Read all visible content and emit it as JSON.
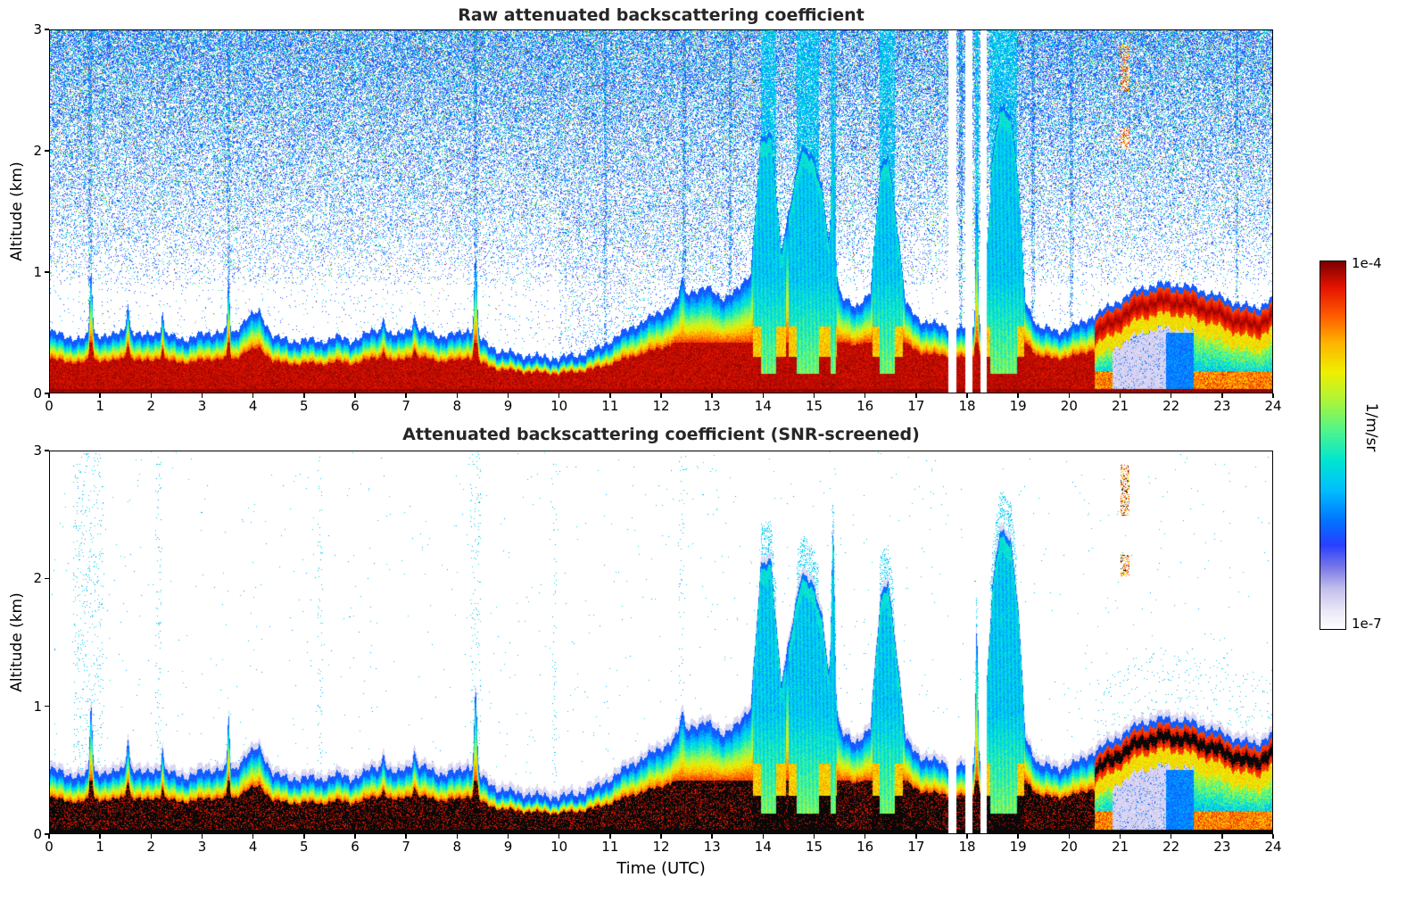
{
  "figure": {
    "background": "#ffffff",
    "title_color": "#262626",
    "axis_color": "#000000"
  },
  "chart_data": {
    "type": "heatmap",
    "x": {
      "label": "Time (UTC)",
      "min": 0,
      "max": 24,
      "ticks": [
        0,
        1,
        2,
        3,
        4,
        5,
        6,
        7,
        8,
        9,
        10,
        11,
        12,
        13,
        14,
        15,
        16,
        17,
        18,
        19,
        20,
        21,
        22,
        23,
        24
      ]
    },
    "y": {
      "label": "Altitude (km)",
      "min": 0,
      "max": 3,
      "ticks": [
        0,
        1,
        2,
        3
      ]
    },
    "colorbar": {
      "max_label": "1e-4",
      "min_label": "1e-7",
      "unit": "1/m/sr",
      "scale": "logarithmic",
      "stops": [
        [
          0,
          "#ffffff"
        ],
        [
          0.05,
          "#ece9f7"
        ],
        [
          0.11,
          "#c4c0ee"
        ],
        [
          0.17,
          "#7878e8"
        ],
        [
          0.23,
          "#2840ff"
        ],
        [
          0.3,
          "#0078ff"
        ],
        [
          0.38,
          "#00c0ff"
        ],
        [
          0.46,
          "#00e6d2"
        ],
        [
          0.54,
          "#50f58c"
        ],
        [
          0.62,
          "#aaf53c"
        ],
        [
          0.7,
          "#f0f000"
        ],
        [
          0.78,
          "#ffb400"
        ],
        [
          0.855,
          "#ff5a00"
        ],
        [
          0.93,
          "#e61400"
        ],
        [
          1,
          "#7d0000"
        ]
      ]
    },
    "panels": [
      {
        "id": "raw",
        "title": "Raw attenuated backscattering coefficient",
        "noise_screened": false,
        "features": [
          "dense blue/cyan background noise increasing with altitude above ~1 km",
          "strong red aerosol layer below ~0.5 km for most of the day",
          "cloud/precipitation plumes reaching 1.9-2.4 km between 13.8 and 19.1 UTC",
          "white data gaps near 17.7, 18.0 and 18.3 UTC",
          "elevated layer at 0.6-0.9 km after 20.5 UTC with pale attenuated zone beneath 20.9-22.4 UTC"
        ]
      },
      {
        "id": "screened",
        "title": "Attenuated backscattering coefficient (SNR-screened)",
        "noise_screened": true,
        "features": [
          "noise screened to white above the detected signal",
          "saturated returns rendered black inside the aerosol layer and along the surface line",
          "same plumes, data gaps and elevated layer as the raw panel"
        ]
      }
    ],
    "boundary_layer_top_km": [
      [
        0,
        0.46
      ],
      [
        0.3,
        0.42
      ],
      [
        0.6,
        0.4
      ],
      [
        0.9,
        0.44
      ],
      [
        1.2,
        0.42
      ],
      [
        1.5,
        0.48
      ],
      [
        1.8,
        0.42
      ],
      [
        2.1,
        0.46
      ],
      [
        2.4,
        0.42
      ],
      [
        2.7,
        0.4
      ],
      [
        3.0,
        0.44
      ],
      [
        3.3,
        0.46
      ],
      [
        3.6,
        0.44
      ],
      [
        3.85,
        0.58
      ],
      [
        4.1,
        0.62
      ],
      [
        4.35,
        0.44
      ],
      [
        4.7,
        0.37
      ],
      [
        5.0,
        0.4
      ],
      [
        5.3,
        0.37
      ],
      [
        5.6,
        0.42
      ],
      [
        5.9,
        0.38
      ],
      [
        6.2,
        0.44
      ],
      [
        6.5,
        0.48
      ],
      [
        6.8,
        0.42
      ],
      [
        7.1,
        0.5
      ],
      [
        7.4,
        0.46
      ],
      [
        7.7,
        0.42
      ],
      [
        8.0,
        0.44
      ],
      [
        8.2,
        0.48
      ],
      [
        8.5,
        0.38
      ],
      [
        8.8,
        0.3
      ],
      [
        9.2,
        0.27
      ],
      [
        9.6,
        0.25
      ],
      [
        10.0,
        0.24
      ],
      [
        10.4,
        0.27
      ],
      [
        10.8,
        0.33
      ],
      [
        11.2,
        0.44
      ],
      [
        11.6,
        0.54
      ],
      [
        12.0,
        0.62
      ],
      [
        12.3,
        0.72
      ],
      [
        12.6,
        0.8
      ],
      [
        12.9,
        0.82
      ],
      [
        13.2,
        0.74
      ],
      [
        13.5,
        0.8
      ],
      [
        13.75,
        0.95
      ],
      [
        13.95,
        2.05
      ],
      [
        14.15,
        2.1
      ],
      [
        14.35,
        1.15
      ],
      [
        14.55,
        1.55
      ],
      [
        14.75,
        2.0
      ],
      [
        14.95,
        1.95
      ],
      [
        15.15,
        1.65
      ],
      [
        15.35,
        1.0
      ],
      [
        15.55,
        0.75
      ],
      [
        15.8,
        0.65
      ],
      [
        16.1,
        0.8
      ],
      [
        16.3,
        1.8
      ],
      [
        16.45,
        1.95
      ],
      [
        16.6,
        1.45
      ],
      [
        16.8,
        0.68
      ],
      [
        17.1,
        0.55
      ],
      [
        17.4,
        0.52
      ],
      [
        17.9,
        0.48
      ],
      [
        18.3,
        0.52
      ],
      [
        18.5,
        1.9
      ],
      [
        18.65,
        2.35
      ],
      [
        18.85,
        2.28
      ],
      [
        19.0,
        1.75
      ],
      [
        19.15,
        0.7
      ],
      [
        19.4,
        0.5
      ],
      [
        19.8,
        0.46
      ],
      [
        20.2,
        0.52
      ],
      [
        20.6,
        0.62
      ],
      [
        21.0,
        0.72
      ],
      [
        21.4,
        0.82
      ],
      [
        21.9,
        0.86
      ],
      [
        22.4,
        0.83
      ],
      [
        22.9,
        0.76
      ],
      [
        23.4,
        0.68
      ],
      [
        23.7,
        0.66
      ],
      [
        24.0,
        0.74
      ]
    ],
    "spikes_gaussian": [
      [
        0.8,
        0.55,
        0.035
      ],
      [
        1.52,
        0.22,
        0.04
      ],
      [
        2.2,
        0.18,
        0.03
      ],
      [
        3.5,
        0.42,
        0.03
      ],
      [
        6.55,
        0.12,
        0.04
      ],
      [
        7.15,
        0.1,
        0.04
      ],
      [
        8.35,
        0.62,
        0.04
      ],
      [
        12.4,
        0.15,
        0.05
      ],
      [
        15.37,
        1.35,
        0.045
      ],
      [
        18.19,
        1.05,
        0.03
      ]
    ],
    "plume_intervals_utc": [
      [
        13.8,
        14.45
      ],
      [
        14.5,
        15.3
      ],
      [
        15.28,
        15.47
      ],
      [
        16.15,
        16.75
      ],
      [
        18.38,
        19.12
      ]
    ],
    "plume_core_columns_utc": [
      [
        13.95,
        14.25
      ],
      [
        14.65,
        15.1
      ],
      [
        15.32,
        15.43
      ],
      [
        16.28,
        16.58
      ],
      [
        18.16,
        18.23
      ],
      [
        18.45,
        18.98
      ]
    ],
    "noise_stripe_columns_utc": [
      0.78,
      3.5,
      8.35,
      10.9,
      12.45,
      13.35,
      17.88,
      19.3,
      20.05,
      23.3
    ],
    "screened_speck_columns_utc": [
      [
        0.45,
        1.05
      ],
      [
        2.05,
        2.18
      ],
      [
        5.25,
        5.35
      ],
      [
        8.25,
        8.45
      ],
      [
        9.85,
        9.95
      ],
      [
        12.35,
        12.45
      ]
    ],
    "data_gaps_utc": [
      [
        17.64,
        17.79
      ],
      [
        17.96,
        18.1
      ],
      [
        18.27,
        18.38
      ]
    ],
    "attenuated_zone_utc": [
      20.85,
      22.45
    ],
    "elevated_layer_after_utc": 20.5,
    "high_altitude_specks": {
      "t": [
        21.02,
        21.18
      ],
      "alt_bands_km": [
        [
          2.02,
          2.2
        ],
        [
          2.5,
          2.9
        ]
      ]
    }
  }
}
